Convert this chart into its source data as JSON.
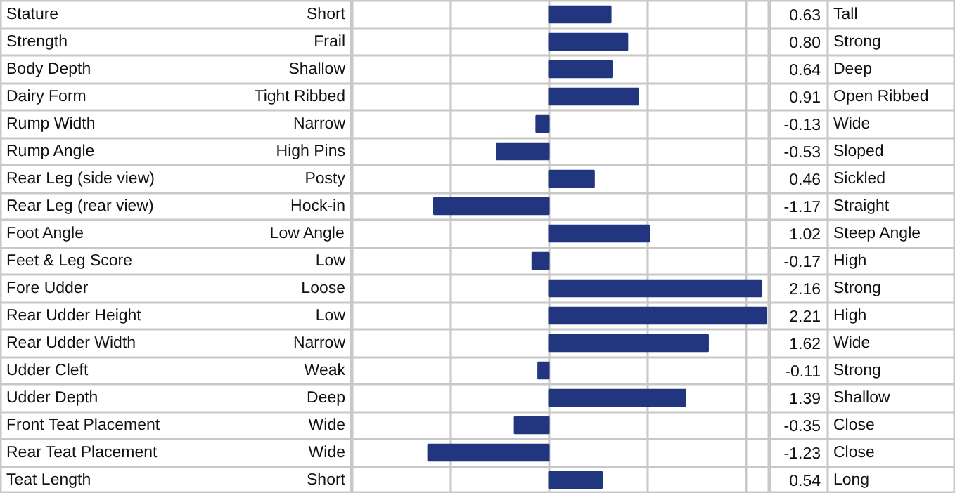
{
  "chart_data": {
    "type": "bar",
    "orientation": "horizontal",
    "color": "#22367f",
    "value_labels": [
      "0.63",
      "0.80",
      "0.64",
      "0.91",
      "-0.13",
      "-0.53",
      "0.46",
      "-1.17",
      "1.02",
      "-0.17",
      "2.16",
      "2.21",
      "1.62",
      "-0.11",
      "1.39",
      "-0.35",
      "-1.23",
      "0.54"
    ],
    "tick_labels": false,
    "grid": "x",
    "categories": [
      "Stature",
      "Strength",
      "Body Depth",
      "Dairy Form",
      "Rump Width",
      "Rump Angle",
      "Rear Leg (side view)",
      "Rear Leg (rear view)",
      "Foot Angle",
      "Feet & Leg Score",
      "Fore Udder",
      "Rear Udder Height",
      "Rear Udder Width",
      "Udder Cleft",
      "Udder Depth",
      "Front Teat Placement",
      "Rear Teat Placement",
      "Teat Length"
    ],
    "values": [
      0.63,
      0.8,
      0.64,
      0.91,
      -0.13,
      -0.53,
      0.46,
      -1.17,
      1.02,
      -0.17,
      2.16,
      2.21,
      1.62,
      -0.11,
      1.39,
      -0.35,
      -1.23,
      0.54
    ],
    "xlim": [
      -2,
      2.25
    ],
    "xticks": [
      {
        "value": -1,
        "label": null
      },
      {
        "value": 0,
        "label": null
      },
      {
        "value": 1,
        "label": null
      },
      {
        "value": 2,
        "label": null
      }
    ],
    "annotations": [
      "Short",
      "Tall",
      "Frail",
      "Strong",
      "Shallow",
      "Deep",
      "Tight Ribbed",
      "Open Ribbed",
      "Narrow",
      "Wide",
      "High Pins",
      "Sloped",
      "Posty",
      "Sickled",
      "Hock-in",
      "Straight",
      "Low Angle",
      "Steep Angle",
      "Low",
      "High",
      "Loose",
      "Strong",
      "Low",
      "High",
      "Narrow",
      "Wide",
      "Weak",
      "Strong",
      "Deep",
      "Shallow",
      "Wide",
      "Close",
      "Wide",
      "Close",
      "Short",
      "Long"
    ]
  }
}
